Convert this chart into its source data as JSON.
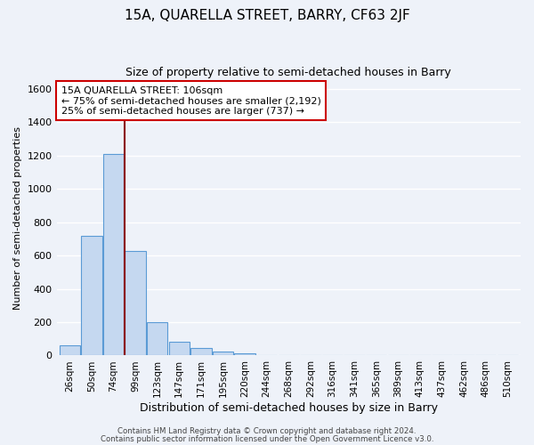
{
  "title1": "15A, QUARELLA STREET, BARRY, CF63 2JF",
  "title2": "Size of property relative to semi-detached houses in Barry",
  "xlabel": "Distribution of semi-detached houses by size in Barry",
  "ylabel": "Number of semi-detached properties",
  "footer1": "Contains HM Land Registry data © Crown copyright and database right 2024.",
  "footer2": "Contains public sector information licensed under the Open Government Licence v3.0.",
  "bar_labels": [
    "26sqm",
    "50sqm",
    "74sqm",
    "99sqm",
    "123sqm",
    "147sqm",
    "171sqm",
    "195sqm",
    "220sqm",
    "244sqm",
    "268sqm",
    "292sqm",
    "316sqm",
    "341sqm",
    "365sqm",
    "389sqm",
    "413sqm",
    "437sqm",
    "462sqm",
    "486sqm",
    "510sqm"
  ],
  "bar_values": [
    60,
    720,
    1210,
    630,
    200,
    80,
    45,
    25,
    15,
    0,
    0,
    0,
    0,
    0,
    0,
    0,
    0,
    0,
    0,
    0,
    0
  ],
  "bar_color": "#c5d8f0",
  "bar_edge_color": "#5b9bd5",
  "ylim": [
    0,
    1650
  ],
  "yticks": [
    0,
    200,
    400,
    600,
    800,
    1000,
    1200,
    1400,
    1600
  ],
  "vline_x": 2.5,
  "vline_color": "#8b0000",
  "annotation_title": "15A QUARELLA STREET: 106sqm",
  "annotation_line1": "← 75% of semi-detached houses are smaller (2,192)",
  "annotation_line2": "25% of semi-detached houses are larger (737) →",
  "bg_color": "#eef2f9",
  "grid_color": "#ffffff"
}
